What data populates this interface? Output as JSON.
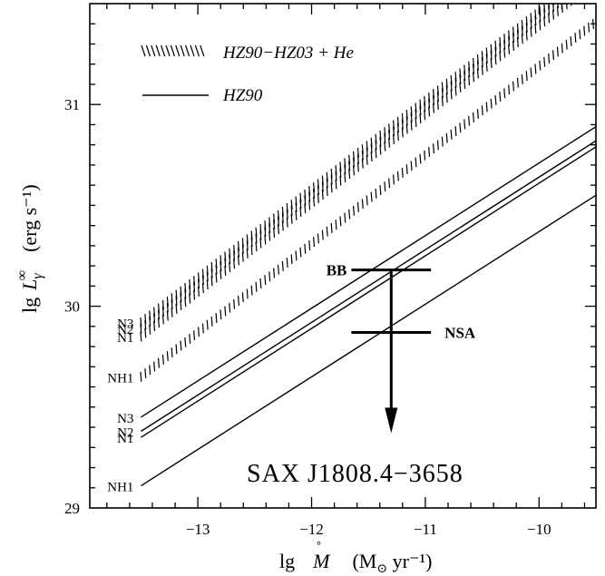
{
  "chart_data": {
    "type": "line",
    "title": "",
    "xlabel_parts": {
      "prefix": "lg",
      "symbol": "M",
      "dot": "˚",
      "unit_open": "(M",
      "sun": "⊙",
      "unit_close": " yr⁻¹)"
    },
    "ylabel_parts": {
      "prefix": "lg",
      "symbol": "L",
      "sub": "γ",
      "sup": "∞",
      "unit": "(erg s⁻¹)"
    },
    "xlim": [
      -13.95,
      -9.5
    ],
    "ylim": [
      29,
      31.5
    ],
    "x_ticks": [
      -13,
      -12,
      -11,
      -10
    ],
    "x_tick_labels": [
      "−13",
      "−12",
      "−11",
      "−10"
    ],
    "y_ticks": [
      29,
      30,
      31
    ],
    "y_tick_labels": [
      "29",
      "30",
      "31"
    ],
    "object_label": "SAX J1808.4−3658",
    "legend": [
      {
        "label": "HZ90−HZ03 + He",
        "style": "hatched"
      },
      {
        "label": "HZ90",
        "style": "solid"
      }
    ],
    "series": [
      {
        "name": "N3",
        "group": "HZ90−HZ03 + He",
        "style": "hatched",
        "x": [
          -13.5,
          -9.5
        ],
        "y": [
          29.92,
          31.68
        ]
      },
      {
        "name": "N2",
        "group": "HZ90−HZ03 + He",
        "style": "hatched",
        "x": [
          -13.5,
          -9.5
        ],
        "y": [
          29.89,
          31.65
        ]
      },
      {
        "name": "N1",
        "group": "HZ90−HZ03 + He",
        "style": "hatched",
        "x": [
          -13.5,
          -9.5
        ],
        "y": [
          29.85,
          31.61
        ]
      },
      {
        "name": "NH1",
        "group": "HZ90−HZ03 + He",
        "style": "hatched",
        "x": [
          -13.5,
          -9.5
        ],
        "y": [
          29.65,
          31.41
        ]
      },
      {
        "name": "N3",
        "group": "HZ90",
        "style": "solid",
        "x": [
          -13.5,
          -9.5
        ],
        "y": [
          29.45,
          30.89
        ]
      },
      {
        "name": "N2",
        "group": "HZ90",
        "style": "solid",
        "x": [
          -13.5,
          -9.5
        ],
        "y": [
          29.38,
          30.82
        ]
      },
      {
        "name": "N1",
        "group": "HZ90",
        "style": "solid",
        "x": [
          -13.5,
          -9.5
        ],
        "y": [
          29.35,
          30.79
        ]
      },
      {
        "name": "NH1",
        "group": "HZ90",
        "style": "solid",
        "x": [
          -13.5,
          -9.5
        ],
        "y": [
          29.11,
          30.55
        ]
      }
    ],
    "upper_limits": [
      {
        "label": "BB",
        "x_range": [
          -11.65,
          -10.95
        ],
        "y": 30.18
      },
      {
        "label": "NSA",
        "x_range": [
          -11.65,
          -10.95
        ],
        "y": 29.87
      }
    ],
    "arrow": {
      "x": -11.3,
      "y_start": 30.18,
      "y_end": 29.38
    }
  }
}
